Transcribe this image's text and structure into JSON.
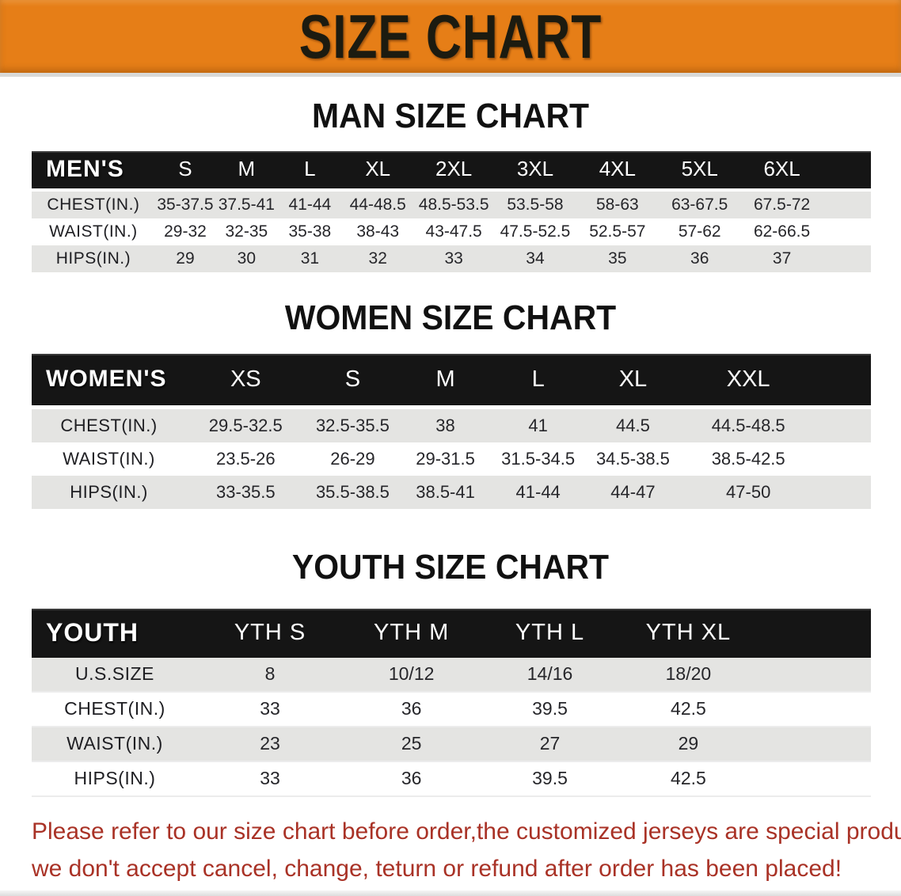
{
  "banner": {
    "title": "SIZE CHART"
  },
  "colors": {
    "banner-orange": "#E67E17",
    "banner-text": "#1C1B10",
    "bar-black": "#151515",
    "row-gray": "#E4E4E2",
    "text-dark": "#26262A",
    "disclaimer-red": "#A93226"
  },
  "sections": [
    {
      "id": "men",
      "heading": "MAN SIZE CHART",
      "header_label": "MEN'S",
      "columns": [
        "S",
        "M",
        "L",
        "XL",
        "2XL",
        "3XL",
        "4XL",
        "5XL",
        "6XL"
      ],
      "rows": [
        {
          "label": "CHEST(IN.)",
          "values": [
            "35-37.5",
            "37.5-41",
            "41-44",
            "44-48.5",
            "48.5-53.5",
            "53.5-58",
            "58-63",
            "63-67.5",
            "67.5-72"
          ]
        },
        {
          "label": "WAIST(IN.)",
          "values": [
            "29-32",
            "32-35",
            "35-38",
            "38-43",
            "43-47.5",
            "47.5-52.5",
            "52.5-57",
            "57-62",
            "62-66.5"
          ]
        },
        {
          "label": "HIPS(IN.)",
          "values": [
            "29",
            "30",
            "31",
            "32",
            "33",
            "34",
            "35",
            "36",
            "37"
          ]
        }
      ]
    },
    {
      "id": "women",
      "heading": "WOMEN SIZE CHART",
      "header_label": "WOMEN'S",
      "columns": [
        "XS",
        "S",
        "M",
        "L",
        "XL",
        "XXL"
      ],
      "rows": [
        {
          "label": "CHEST(IN.)",
          "values": [
            "29.5-32.5",
            "32.5-35.5",
            "38",
            "41",
            "44.5",
            "44.5-48.5"
          ]
        },
        {
          "label": "WAIST(IN.)",
          "values": [
            "23.5-26",
            "26-29",
            "29-31.5",
            "31.5-34.5",
            "34.5-38.5",
            "38.5-42.5"
          ]
        },
        {
          "label": "HIPS(IN.)",
          "values": [
            "33-35.5",
            "35.5-38.5",
            "38.5-41",
            "41-44",
            "44-47",
            "47-50"
          ]
        }
      ]
    },
    {
      "id": "youth",
      "heading": "YOUTH SIZE CHART",
      "header_label": "YOUTH",
      "columns": [
        "YTH S",
        "YTH M",
        "YTH L",
        "YTH XL"
      ],
      "rows": [
        {
          "label": "U.S.SIZE",
          "values": [
            "8",
            "10/12",
            "14/16",
            "18/20"
          ]
        },
        {
          "label": "CHEST(IN.)",
          "values": [
            "33",
            "36",
            "39.5",
            "42.5"
          ]
        },
        {
          "label": "WAIST(IN.)",
          "values": [
            "23",
            "25",
            "27",
            "29"
          ]
        },
        {
          "label": "HIPS(IN.)",
          "values": [
            "33",
            "36",
            "39.5",
            "42.5"
          ]
        }
      ]
    }
  ],
  "disclaimer": {
    "line1": "Please refer to our size chart before order,the customized jerseys are special products,",
    "line2": "we don't accept cancel, change, teturn or refund after order has been placed!"
  }
}
